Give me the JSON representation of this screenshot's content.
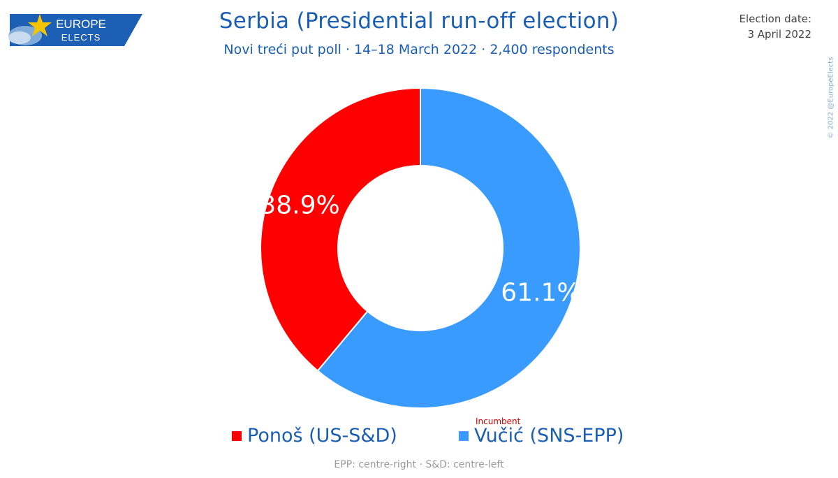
{
  "header": {
    "logo_top": "EUROPE",
    "logo_bottom": "ELECTS",
    "title": "Serbia (Presidential run-off election)",
    "subtitle": "Novi treći put poll · 14–18 March 2022 · 2,400 respondents",
    "election_date_label": "Election date:",
    "election_date": "3 April 2022",
    "copyright": "© 2022 @EuropeElects"
  },
  "chart_data": {
    "type": "pie",
    "variant": "donut",
    "title": "Serbia (Presidential run-off election)",
    "series": [
      {
        "name": "Vučić (SNS-EPP)",
        "value": 61.1,
        "label": "61.1%",
        "color": "#3a9bff",
        "badge": "Incumbent"
      },
      {
        "name": "Ponoš (US-S&D)",
        "value": 38.9,
        "label": "38.9%",
        "color": "#ff0000"
      }
    ]
  },
  "legend": {
    "items": [
      {
        "label": "Ponoš (US-S&D)",
        "color": "#ff0000"
      },
      {
        "label": "Vučić (SNS-EPP)",
        "color": "#3a9bff"
      }
    ],
    "incumbent_badge": "Incumbent"
  },
  "footnote": "EPP: centre-right · S&D: centre-left",
  "colors": {
    "accent": "#1a5eb4",
    "logo_bg": "#1d5fb4",
    "star": "#f5c400"
  }
}
